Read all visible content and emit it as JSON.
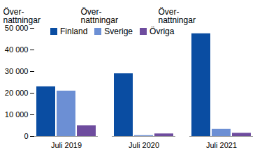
{
  "chart_data": {
    "type": "bar",
    "y_label": "Över-\nnattningar",
    "categories": [
      "Juli 2019",
      "Juli 2020",
      "Juli 2021"
    ],
    "series": [
      {
        "name": "Finland",
        "color": "#0a4da2",
        "values": [
          23000,
          29000,
          47500
        ]
      },
      {
        "name": "Sverige",
        "color": "#6c8fd4",
        "values": [
          21000,
          400,
          3300
        ]
      },
      {
        "name": "Övriga",
        "color": "#6e4c9e",
        "values": [
          5000,
          1200,
          1500
        ]
      }
    ],
    "ylim": [
      0,
      50000
    ],
    "yticks": [
      0,
      {
        "value": 10000,
        "label": "10 000"
      },
      {
        "value": 20000,
        "label": "20 000"
      },
      {
        "value": 30000,
        "label": "30 000"
      },
      {
        "value": 40000,
        "label": "40 000"
      },
      {
        "value": 50000,
        "label": "50 000"
      }
    ],
    "grid": false,
    "legend": "top-left"
  }
}
